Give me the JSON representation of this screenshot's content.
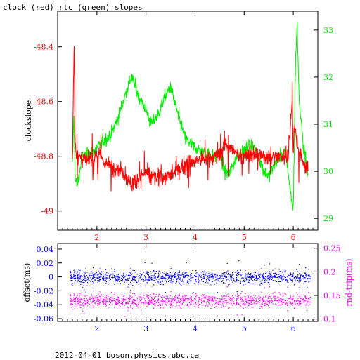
{
  "title": "clock (red) rtc (green) slopes",
  "footer": "2012-04-01 boson.physics.ubc.ca",
  "colors": {
    "red": "#ff0000",
    "green": "#00ee00",
    "blue": "#0000ff",
    "magenta": "#ff00ff",
    "axis": "#000000"
  },
  "chart_data": [
    {
      "type": "line",
      "title": "clock (red) rtc (green) slopes",
      "ylabel": "clockslope",
      "xlim": [
        1.2,
        6.5
      ],
      "ylim_left": [
        -49.07,
        -48.27
      ],
      "ylim_right": [
        28.75,
        33.4
      ],
      "x_ticks": [
        "2",
        "3",
        "4",
        "5",
        "6"
      ],
      "left_ticks": [
        "-48.4",
        "-48.6",
        "-48.8",
        "-49"
      ],
      "right_ticks": [
        "33",
        "32",
        "31",
        "30",
        "29"
      ],
      "series": [
        {
          "axis": "left",
          "color": "#ff0000",
          "x": [
            1.5,
            1.52,
            1.54,
            1.55,
            1.57,
            1.6,
            1.8,
            2.0,
            2.2,
            2.5,
            2.7,
            2.9,
            3.0,
            3.2,
            3.5,
            3.9,
            4.2,
            4.5,
            4.6,
            4.9,
            5.1,
            5.3,
            5.5,
            5.7,
            5.9,
            5.98,
            6.0,
            6.02,
            6.1,
            6.2,
            6.3
          ],
          "y": [
            -48.82,
            -48.55,
            -48.37,
            -48.7,
            -48.78,
            -48.8,
            -48.82,
            -48.79,
            -48.83,
            -48.85,
            -48.9,
            -48.87,
            -48.86,
            -48.88,
            -48.87,
            -48.82,
            -48.81,
            -48.8,
            -48.75,
            -48.8,
            -48.79,
            -48.8,
            -48.8,
            -48.8,
            -48.8,
            -48.58,
            -48.8,
            -48.68,
            -48.77,
            -48.82,
            -48.85
          ]
        },
        {
          "axis": "right",
          "color": "#00ee00",
          "x": [
            1.5,
            1.53,
            1.56,
            1.6,
            1.7,
            1.9,
            2.1,
            2.3,
            2.45,
            2.6,
            2.7,
            2.75,
            2.85,
            3.0,
            3.1,
            3.25,
            3.35,
            3.5,
            3.65,
            3.8,
            4.0,
            4.2,
            4.4,
            4.5,
            4.6,
            4.7,
            4.8,
            4.9,
            5.0,
            5.1,
            5.2,
            5.3,
            5.4,
            5.5,
            5.6,
            5.7,
            5.85,
            5.95,
            6.0,
            6.05,
            6.08,
            6.12,
            6.2,
            6.3
          ],
          "y": [
            30.1,
            31.2,
            29.8,
            29.7,
            30.3,
            30.4,
            30.6,
            30.8,
            31.2,
            31.7,
            32.0,
            31.9,
            31.6,
            31.3,
            31.0,
            31.2,
            31.5,
            31.8,
            31.2,
            30.7,
            30.5,
            30.4,
            30.3,
            30.4,
            30.0,
            29.95,
            30.2,
            30.4,
            30.4,
            30.6,
            30.5,
            30.3,
            30.0,
            29.9,
            30.1,
            30.3,
            30.4,
            29.5,
            29.2,
            32.5,
            33.1,
            31.5,
            30.6,
            29.95
          ]
        }
      ]
    },
    {
      "type": "scatter",
      "ylabel": "offset(ms)",
      "ylabel_right": "rnd-trip(ms)",
      "xlim": [
        1.2,
        6.5
      ],
      "ylim_left": [
        -0.064,
        0.048
      ],
      "ylim_right": [
        0.095,
        0.26
      ],
      "x_ticks": [
        "2",
        "3",
        "4",
        "5",
        "6"
      ],
      "left_ticks": [
        "0.04",
        "0.02",
        "0",
        "-0.02",
        "-0.04",
        "-0.06"
      ],
      "right_ticks": [
        "0.25",
        "0.2",
        "0.15",
        "0.1"
      ],
      "series": [
        {
          "axis": "left",
          "color": "#0000ff",
          "x_range": [
            1.45,
            6.35
          ],
          "center": 0.0,
          "spread": 0.008
        },
        {
          "axis": "right",
          "color": "#ff00ff",
          "x_range": [
            1.45,
            6.35
          ],
          "center": 0.14,
          "spread": 0.012
        }
      ]
    }
  ]
}
